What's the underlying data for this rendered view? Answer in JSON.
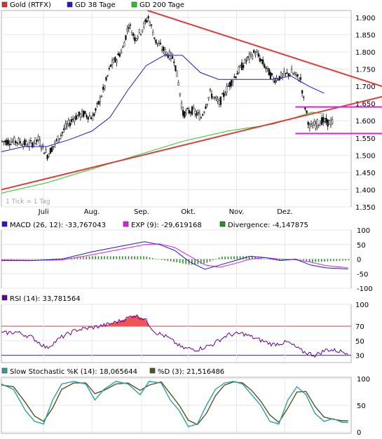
{
  "colors": {
    "price_legend": "#e03030",
    "gd38": "#1c1ccc",
    "gd200": "#22cc22",
    "candle": "#111111",
    "trend_red": "#e23a3a",
    "support_magenta": "#e020e0",
    "macd": "#1c1ccc",
    "exp": "#e020e0",
    "divergence": "#2a8c2a",
    "rsi": "#660099",
    "stoch_k": "#2aa0a0",
    "stoch_d": "#555522",
    "grid": "#e6e6e6"
  },
  "chart_data": [
    {
      "type": "candlestick",
      "panel": "price",
      "legend": [
        {
          "key": "price",
          "label": "Gold (RTFX)"
        },
        {
          "key": "gd38",
          "label": "GD 38 Tage"
        },
        {
          "key": "gd200",
          "label": "GD 200 Tage"
        }
      ],
      "note": "1 Tick = 1 Tag",
      "y_ticks": [
        "1.900",
        "1.850",
        "1.800",
        "1.750",
        "1.700",
        "1.650",
        "1.600",
        "1.550",
        "1.500",
        "1.450",
        "1.400",
        "1.350"
      ],
      "ylim": [
        1350,
        1920
      ],
      "x_ticks": [
        "Juli",
        "Aug.",
        "Sep.",
        "Okt.",
        "Nov.",
        "Dez."
      ],
      "x_tick_days": [
        28,
        60,
        93,
        124,
        156,
        188
      ],
      "days": 232,
      "price_path": [
        [
          0,
          1540
        ],
        [
          10,
          1540
        ],
        [
          18,
          1530
        ],
        [
          24,
          1545
        ],
        [
          30,
          1500
        ],
        [
          36,
          1540
        ],
        [
          42,
          1580
        ],
        [
          48,
          1610
        ],
        [
          54,
          1620
        ],
        [
          60,
          1610
        ],
        [
          64,
          1650
        ],
        [
          68,
          1700
        ],
        [
          72,
          1760
        ],
        [
          76,
          1780
        ],
        [
          80,
          1810
        ],
        [
          84,
          1880
        ],
        [
          88,
          1840
        ],
        [
          92,
          1860
        ],
        [
          97,
          1900
        ],
        [
          102,
          1830
        ],
        [
          108,
          1800
        ],
        [
          114,
          1780
        ],
        [
          117,
          1710
        ],
        [
          120,
          1620
        ],
        [
          126,
          1630
        ],
        [
          132,
          1610
        ],
        [
          138,
          1680
        ],
        [
          144,
          1650
        ],
        [
          150,
          1700
        ],
        [
          156,
          1740
        ],
        [
          162,
          1775
        ],
        [
          168,
          1800
        ],
        [
          174,
          1760
        ],
        [
          180,
          1720
        ],
        [
          186,
          1730
        ],
        [
          192,
          1740
        ],
        [
          198,
          1720
        ],
        [
          200,
          1660
        ],
        [
          204,
          1580
        ],
        [
          208,
          1590
        ],
        [
          212,
          1600
        ],
        [
          216,
          1595
        ]
      ],
      "gd38_path": [
        [
          0,
          1510
        ],
        [
          15,
          1525
        ],
        [
          30,
          1525
        ],
        [
          45,
          1545
        ],
        [
          60,
          1570
        ],
        [
          72,
          1610
        ],
        [
          84,
          1690
        ],
        [
          96,
          1760
        ],
        [
          108,
          1790
        ],
        [
          120,
          1790
        ],
        [
          132,
          1740
        ],
        [
          144,
          1720
        ],
        [
          156,
          1720
        ],
        [
          168,
          1720
        ],
        [
          180,
          1720
        ],
        [
          192,
          1730
        ],
        [
          204,
          1700
        ],
        [
          214,
          1680
        ]
      ],
      "gd200_path": [
        [
          0,
          1390
        ],
        [
          30,
          1420
        ],
        [
          60,
          1460
        ],
        [
          90,
          1500
        ],
        [
          120,
          1540
        ],
        [
          150,
          1570
        ],
        [
          180,
          1590
        ],
        [
          195,
          1610
        ],
        [
          206,
          1625
        ],
        [
          214,
          1620
        ]
      ],
      "trend_lines": [
        {
          "from": [
            0,
            1400
          ],
          "to": [
            232,
            1670
          ],
          "kind": "support"
        },
        {
          "from": [
            97,
            1920
          ],
          "to": [
            232,
            1700
          ],
          "kind": "resistance"
        },
        {
          "from": [
            195,
            1640
          ],
          "to": [
            232,
            1640
          ],
          "kind": "range"
        },
        {
          "from": [
            195,
            1563
          ],
          "to": [
            232,
            1563
          ],
          "kind": "range"
        }
      ]
    },
    {
      "type": "line",
      "panel": "macd",
      "legend": [
        {
          "key": "macd",
          "label": "MACD (26, 12): -33,767043"
        },
        {
          "key": "exp",
          "label": "EXP (9): -29,619168"
        },
        {
          "key": "divergence",
          "label": "Divergence: -4,147875"
        }
      ],
      "y_ticks": [
        "100",
        "50",
        "0",
        "-50",
        "-100"
      ],
      "ylim": [
        -100,
        100
      ],
      "macd_path": [
        [
          0,
          -5
        ],
        [
          20,
          -5
        ],
        [
          40,
          0
        ],
        [
          60,
          25
        ],
        [
          80,
          45
        ],
        [
          95,
          60
        ],
        [
          105,
          50
        ],
        [
          115,
          30
        ],
        [
          125,
          -10
        ],
        [
          135,
          -35
        ],
        [
          145,
          -20
        ],
        [
          155,
          -5
        ],
        [
          165,
          10
        ],
        [
          175,
          5
        ],
        [
          185,
          -5
        ],
        [
          195,
          0
        ],
        [
          205,
          -20
        ],
        [
          215,
          -30
        ],
        [
          230,
          -34
        ]
      ],
      "exp_path": [
        [
          0,
          -3
        ],
        [
          20,
          -4
        ],
        [
          40,
          -3
        ],
        [
          60,
          15
        ],
        [
          80,
          35
        ],
        [
          95,
          50
        ],
        [
          105,
          52
        ],
        [
          115,
          40
        ],
        [
          125,
          10
        ],
        [
          135,
          -20
        ],
        [
          145,
          -28
        ],
        [
          155,
          -15
        ],
        [
          165,
          0
        ],
        [
          175,
          5
        ],
        [
          185,
          0
        ],
        [
          195,
          -2
        ],
        [
          205,
          -10
        ],
        [
          215,
          -22
        ],
        [
          230,
          -30
        ]
      ]
    },
    {
      "type": "line",
      "panel": "rsi",
      "legend": [
        {
          "key": "rsi",
          "label": "RSI (14): 33,781564"
        }
      ],
      "y_ticks": [
        "100",
        "70",
        "50",
        "30"
      ],
      "levels": [
        70,
        30
      ],
      "ylim": [
        20,
        100
      ],
      "rsi_path": [
        [
          0,
          60
        ],
        [
          10,
          62
        ],
        [
          20,
          55
        ],
        [
          30,
          40
        ],
        [
          40,
          55
        ],
        [
          50,
          65
        ],
        [
          60,
          68
        ],
        [
          70,
          72
        ],
        [
          80,
          78
        ],
        [
          88,
          85
        ],
        [
          95,
          80
        ],
        [
          102,
          62
        ],
        [
          110,
          55
        ],
        [
          120,
          40
        ],
        [
          130,
          38
        ],
        [
          140,
          45
        ],
        [
          150,
          58
        ],
        [
          160,
          60
        ],
        [
          170,
          52
        ],
        [
          180,
          45
        ],
        [
          190,
          48
        ],
        [
          200,
          35
        ],
        [
          208,
          30
        ],
        [
          216,
          38
        ],
        [
          230,
          34
        ]
      ]
    },
    {
      "type": "line",
      "panel": "stochastic",
      "legend": [
        {
          "key": "stoch_k",
          "label": "Slow Stochastic %K (14): 18,065644"
        },
        {
          "key": "stoch_d",
          "label": "%D (3): 21,516486"
        }
      ],
      "y_ticks": [
        "100",
        "50",
        "0"
      ],
      "ylim": [
        0,
        100
      ],
      "k_path": [
        [
          0,
          90
        ],
        [
          8,
          80
        ],
        [
          16,
          40
        ],
        [
          22,
          20
        ],
        [
          28,
          15
        ],
        [
          34,
          60
        ],
        [
          40,
          90
        ],
        [
          48,
          95
        ],
        [
          56,
          90
        ],
        [
          62,
          60
        ],
        [
          68,
          80
        ],
        [
          76,
          95
        ],
        [
          84,
          90
        ],
        [
          92,
          70
        ],
        [
          98,
          95
        ],
        [
          106,
          92
        ],
        [
          112,
          60
        ],
        [
          118,
          40
        ],
        [
          124,
          10
        ],
        [
          130,
          15
        ],
        [
          136,
          50
        ],
        [
          142,
          80
        ],
        [
          148,
          92
        ],
        [
          154,
          95
        ],
        [
          160,
          90
        ],
        [
          166,
          70
        ],
        [
          172,
          50
        ],
        [
          178,
          20
        ],
        [
          184,
          15
        ],
        [
          190,
          60
        ],
        [
          196,
          85
        ],
        [
          202,
          70
        ],
        [
          208,
          35
        ],
        [
          214,
          20
        ],
        [
          220,
          25
        ],
        [
          226,
          18
        ],
        [
          230,
          18
        ]
      ],
      "d_path": [
        [
          0,
          88
        ],
        [
          8,
          85
        ],
        [
          16,
          55
        ],
        [
          22,
          30
        ],
        [
          28,
          20
        ],
        [
          34,
          45
        ],
        [
          40,
          80
        ],
        [
          48,
          92
        ],
        [
          56,
          92
        ],
        [
          62,
          72
        ],
        [
          68,
          78
        ],
        [
          76,
          90
        ],
        [
          84,
          92
        ],
        [
          92,
          78
        ],
        [
          98,
          88
        ],
        [
          106,
          94
        ],
        [
          112,
          72
        ],
        [
          118,
          50
        ],
        [
          124,
          22
        ],
        [
          130,
          14
        ],
        [
          136,
          35
        ],
        [
          142,
          68
        ],
        [
          148,
          88
        ],
        [
          154,
          94
        ],
        [
          160,
          92
        ],
        [
          166,
          78
        ],
        [
          172,
          58
        ],
        [
          178,
          32
        ],
        [
          184,
          18
        ],
        [
          190,
          45
        ],
        [
          196,
          75
        ],
        [
          202,
          76
        ],
        [
          208,
          48
        ],
        [
          214,
          28
        ],
        [
          220,
          24
        ],
        [
          226,
          21
        ],
        [
          230,
          21
        ]
      ]
    }
  ]
}
